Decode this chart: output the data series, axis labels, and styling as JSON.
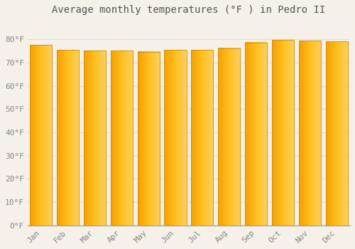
{
  "title": "Average monthly temperatures (°F ) in Pedro II",
  "months": [
    "Jan",
    "Feb",
    "Mar",
    "Apr",
    "May",
    "Jun",
    "Jul",
    "Aug",
    "Sep",
    "Oct",
    "Nov",
    "Dec"
  ],
  "values": [
    77.5,
    75.5,
    75.2,
    75.2,
    74.7,
    75.5,
    75.5,
    76.2,
    78.6,
    79.7,
    79.5,
    79.0
  ],
  "bar_color_main": "#FFC020",
  "bar_color_left": "#F5A000",
  "bar_color_right": "#FFD060",
  "bar_edge_color": "#C89010",
  "background_color": "#F5F0E8",
  "plot_bg_color": "#F5F0E8",
  "grid_color": "#DDDDDD",
  "text_color": "#888888",
  "title_color": "#555555",
  "ylim": [
    0,
    88
  ],
  "yticks": [
    0,
    10,
    20,
    30,
    40,
    50,
    60,
    70,
    80
  ],
  "ytick_labels": [
    "0°F",
    "10°F",
    "20°F",
    "30°F",
    "40°F",
    "50°F",
    "60°F",
    "70°F",
    "80°F"
  ],
  "title_fontsize": 10,
  "tick_fontsize": 8
}
